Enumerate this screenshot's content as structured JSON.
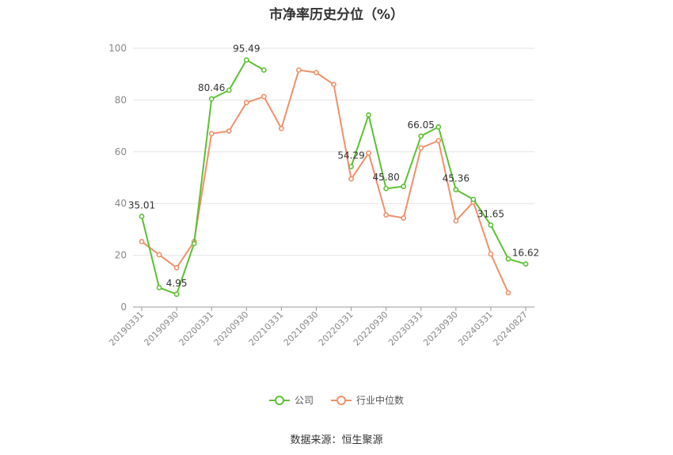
{
  "chart_data": {
    "type": "line",
    "title": "市净率历史分位（%）",
    "ylim": [
      0,
      100
    ],
    "y_ticks": [
      "0",
      "20",
      "40",
      "60",
      "80",
      "100"
    ],
    "x_tick_labels": [
      "20190331",
      "20190930",
      "20200331",
      "20200930",
      "20210331",
      "20210930",
      "20220331",
      "20220930",
      "20230331",
      "20230930",
      "20240331",
      "20240827"
    ],
    "grid": true,
    "legend_position": "bottom",
    "series": [
      {
        "name": "公司",
        "color": "#5cc132",
        "values": [
          35.01,
          7.5,
          4.95,
          24.5,
          80.46,
          83.8,
          95.49,
          91.6,
          null,
          null,
          null,
          null,
          54.29,
          74.2,
          45.8,
          46.6,
          66.05,
          69.6,
          45.36,
          41.6,
          31.65,
          18.6,
          16.62
        ],
        "labels": [
          {
            "index": 0,
            "text": "35.01"
          },
          {
            "index": 2,
            "text": "4.95"
          },
          {
            "index": 4,
            "text": "80.46"
          },
          {
            "index": 6,
            "text": "95.49"
          },
          {
            "index": 12,
            "text": "54.29"
          },
          {
            "index": 14,
            "text": "45.80"
          },
          {
            "index": 16,
            "text": "66.05"
          },
          {
            "index": 18,
            "text": "45.36"
          },
          {
            "index": 20,
            "text": "31.65"
          },
          {
            "index": 22,
            "text": "16.62"
          }
        ]
      },
      {
        "name": "行业中位数",
        "color": "#f0906a",
        "values": [
          25.3,
          20.2,
          15.2,
          25.3,
          67.0,
          68.0,
          79.0,
          81.3,
          69.0,
          91.6,
          90.6,
          86.0,
          49.5,
          59.5,
          35.6,
          34.4,
          61.5,
          64.3,
          33.3,
          40.6,
          20.5,
          5.5,
          null
        ]
      }
    ]
  },
  "legend": {
    "company": "公司",
    "industry": "行业中位数"
  },
  "source": "数据来源：恒生聚源"
}
